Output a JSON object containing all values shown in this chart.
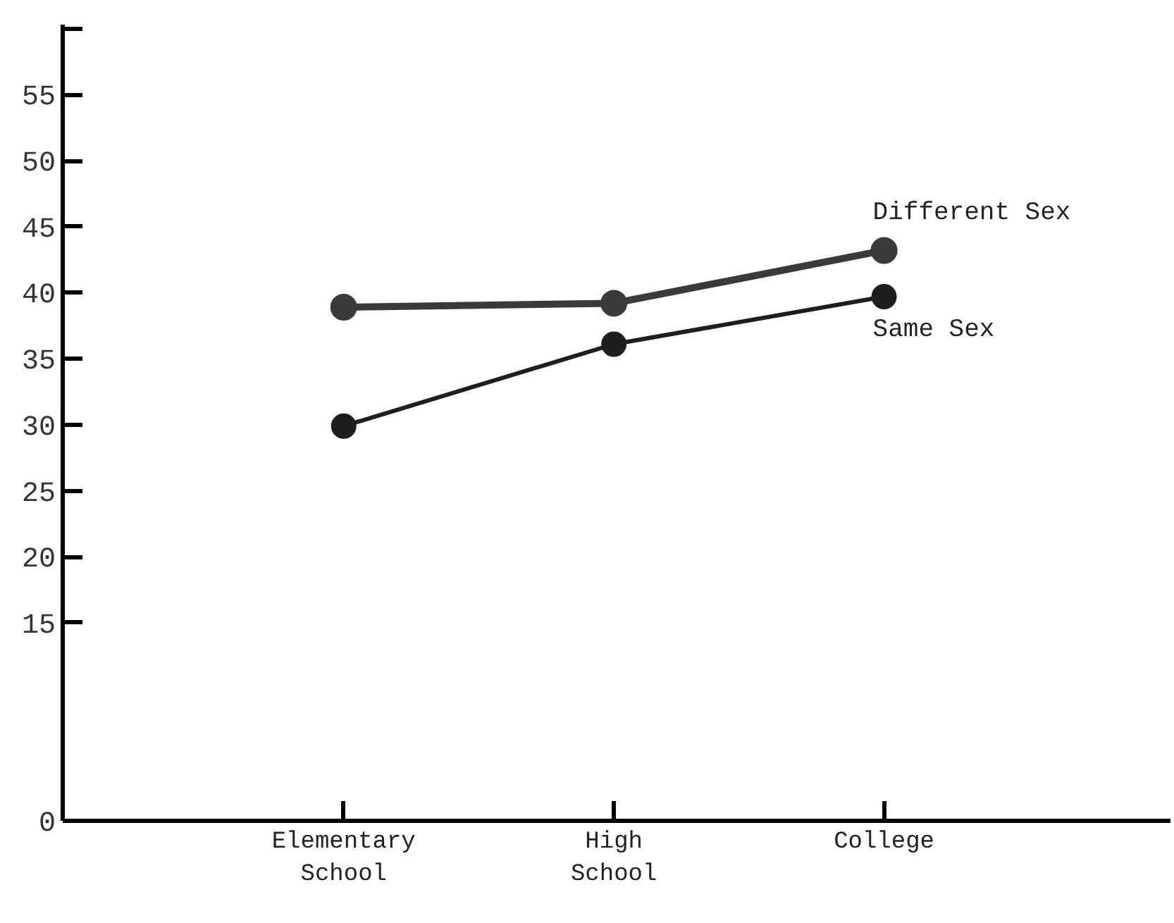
{
  "chart_data": {
    "type": "line",
    "categories": [
      "Elementary\nSchool",
      "High\nSchool",
      "College"
    ],
    "ylim": [
      0,
      60.3
    ],
    "yticks": [
      0,
      15,
      20,
      25,
      30,
      35,
      40,
      45,
      50,
      55,
      {
        "value": 60,
        "label": null
      }
    ],
    "marker": "circle",
    "series": [
      {
        "name": "Different Sex",
        "color": "#3a3a3a",
        "values": [
          38.9,
          39.2,
          43.2
        ]
      },
      {
        "name": "Same Sex",
        "color": "#1e1e1e",
        "values": [
          29.9,
          36.1,
          39.7
        ]
      }
    ]
  }
}
